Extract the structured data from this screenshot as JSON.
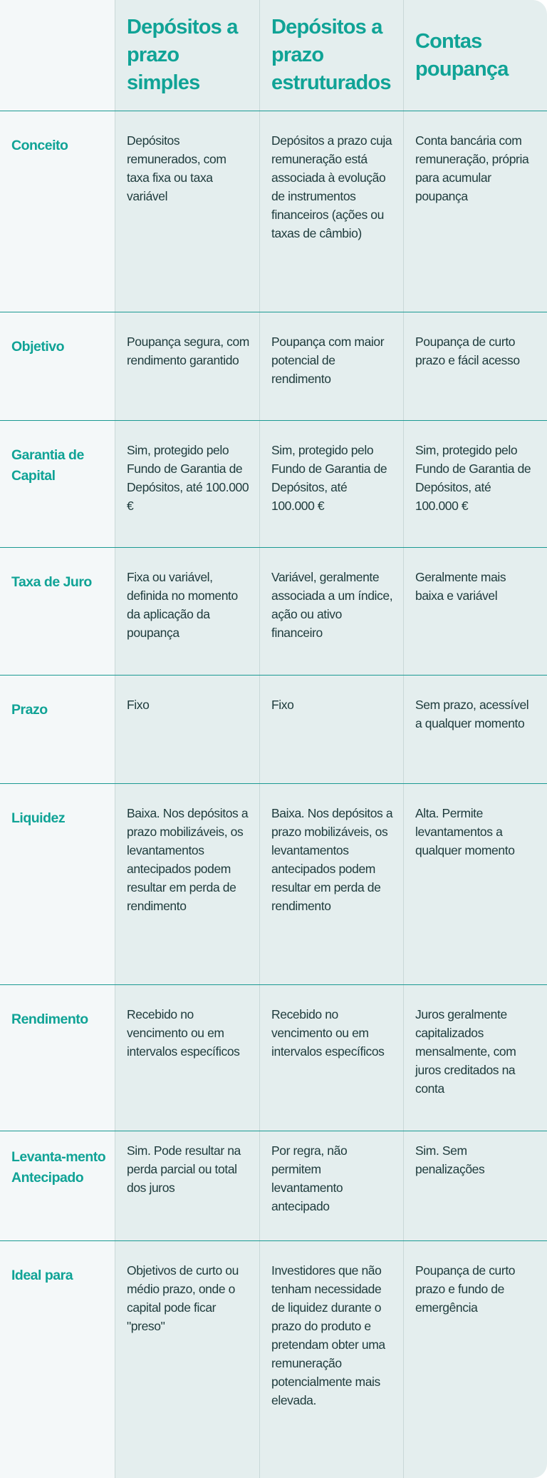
{
  "colors": {
    "accent": "#10a396",
    "text": "#1e3b3c",
    "label_bg": "#f4f8f9",
    "cell_bg": "#e4eeee",
    "row_border": "#1b9a93"
  },
  "columns": [
    "Depósitos a prazo simples",
    "Depósitos a prazo estruturados",
    "Contas poupança"
  ],
  "rows": [
    {
      "label": "Conceito",
      "values": [
        "Depósitos remunerados, com taxa fixa ou taxa variável",
        "Depósitos a prazo cuja remuneração está associada à evolução de instrumentos financeiros (ações ou taxas de câmbio)",
        "Conta bancária com remuneração, própria para acumular poupança"
      ]
    },
    {
      "label": "Objetivo",
      "values": [
        "Poupança segura, com rendimento garantido",
        "Poupança com maior potencial de rendimento",
        "Poupança de curto prazo e fácil acesso"
      ]
    },
    {
      "label": "Garantia de Capital",
      "values": [
        "Sim, protegido pelo Fundo de Garantia de Depósitos, até 100.000 €",
        "Sim, protegido pelo Fundo de Garantia de Depósitos, até 100.000 €",
        "Sim, protegido pelo Fundo de Garantia de Depósitos, até 100.000 €"
      ]
    },
    {
      "label": "Taxa de Juro",
      "values": [
        "Fixa ou variável, definida no momento da aplicação da poupança",
        "Variável, geralmente associada a um índice, ação ou ativo financeiro",
        "Geralmente mais baixa e variável"
      ]
    },
    {
      "label": "Prazo",
      "values": [
        "Fixo",
        "Fixo",
        "Sem prazo, acessível a qualquer momento"
      ]
    },
    {
      "label": "Liquidez",
      "values": [
        "Baixa. Nos depósitos a prazo mobilizáveis, os levantamentos antecipados podem resultar em perda de rendimento",
        "Baixa. Nos depósitos a prazo mobilizáveis, os levantamentos antecipados podem resultar em perda de rendimento",
        "Alta. Permite levantamentos a qualquer momento"
      ]
    },
    {
      "label": "Rendimento",
      "values": [
        "Recebido no vencimento ou em intervalos específicos",
        "Recebido no vencimento ou em intervalos específicos",
        "Juros geralmente capitalizados mensalmente, com juros creditados na conta"
      ]
    },
    {
      "label": "Levanta-mento Antecipado",
      "values": [
        "Sim. Pode resultar na perda parcial ou total dos juros",
        "Por regra, não permitem levantamento antecipado",
        "Sim. Sem penalizações"
      ]
    },
    {
      "label": "Ideal para",
      "values": [
        "Objetivos de curto ou médio prazo, onde o capital pode ficar \"preso\"",
        "Investidores que não tenham necessidade de liquidez durante o prazo do produto e pretendam obter uma remuneração potencialmente mais elevada.",
        "Poupança de curto prazo e fundo de emergência"
      ]
    }
  ]
}
